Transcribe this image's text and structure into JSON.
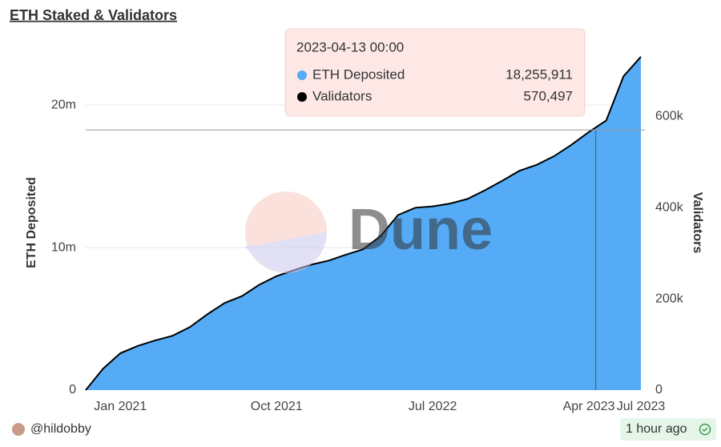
{
  "title": "ETH Staked & Validators",
  "watermark": "Dune",
  "footer": {
    "author": "@hildobby",
    "updated": "1 hour ago"
  },
  "chart_data": {
    "type": "area-line",
    "x": [
      "2020-11",
      "2020-12",
      "2021-01",
      "2021-02",
      "2021-03",
      "2021-04",
      "2021-05",
      "2021-06",
      "2021-07",
      "2021-08",
      "2021-09",
      "2021-10",
      "2021-11",
      "2021-12",
      "2022-01",
      "2022-02",
      "2022-03",
      "2022-04",
      "2022-05",
      "2022-06",
      "2022-07",
      "2022-08",
      "2022-09",
      "2022-10",
      "2022-11",
      "2022-12",
      "2023-01",
      "2023-02",
      "2023-03",
      "2023-04",
      "2023-05",
      "2023-06",
      "2023-07"
    ],
    "xlim": [
      "2020-11",
      "2023-07"
    ],
    "xticks": [
      {
        "value": "2021-01",
        "label": "Jan 2021"
      },
      {
        "value": "2021-10",
        "label": "Oct 2021"
      },
      {
        "value": "2022-07",
        "label": "Jul 2022"
      },
      {
        "value": "2023-04",
        "label": "Apr 2023"
      },
      {
        "value": "2023-07",
        "label": "Jul 2023"
      }
    ],
    "y_label": "ETH Deposited",
    "y2_label": "Validators",
    "ylim": [
      0,
      24000000
    ],
    "yticks": [
      0,
      {
        "value": 10000000,
        "label": "10m"
      },
      {
        "value": 20000000,
        "label": "20m"
      }
    ],
    "y2lim": [
      0,
      750000
    ],
    "y2ticks": [
      0,
      {
        "value": 200000,
        "label": "200k"
      },
      {
        "value": 400000,
        "label": "400k"
      },
      {
        "value": 600000,
        "label": "600k"
      }
    ],
    "grid": true,
    "series": [
      {
        "name": "ETH Deposited",
        "color": "#55abf6",
        "values": [
          0,
          1500000,
          2600000,
          3100000,
          3500000,
          3800000,
          4400000,
          5300000,
          6100000,
          6600000,
          7400000,
          8000000,
          8400000,
          8800000,
          9100000,
          9500000,
          9900000,
          10800000,
          12300000,
          12800000,
          12900000,
          13100000,
          13400000,
          14000000,
          14700000,
          15400000,
          15800000,
          16400000,
          17200000,
          18100000,
          18900000,
          22000000,
          23400000
        ]
      },
      {
        "name": "Validators",
        "color": "#000000",
        "axis": "y2",
        "values": [
          0,
          47000,
          81000,
          97000,
          109000,
          119000,
          138000,
          166000,
          191000,
          206000,
          231000,
          250000,
          263000,
          275000,
          284000,
          297000,
          309000,
          338000,
          384000,
          400000,
          403000,
          409000,
          419000,
          438000,
          459000,
          481000,
          494000,
          513000,
          538000,
          566000,
          591000,
          688000,
          731000
        ]
      }
    ],
    "tooltip": {
      "date": "2023-04-13 00:00",
      "values": [
        18255911,
        570497
      ],
      "value_labels": [
        "18,255,911",
        "570,497"
      ]
    }
  }
}
